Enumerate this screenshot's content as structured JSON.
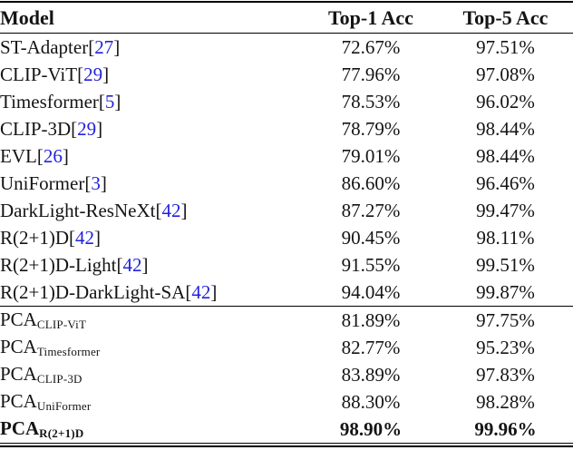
{
  "table": {
    "columns": [
      {
        "label": "Model"
      },
      {
        "label": "Top-1 Acc"
      },
      {
        "label": "Top-5 Acc"
      }
    ],
    "bracket_open": "[",
    "bracket_close": "]",
    "cite_color": "#2222dd",
    "rows": [
      {
        "name": "ST-Adapter",
        "cite": "27",
        "top1": "72.67%",
        "top5": "97.51%"
      },
      {
        "name": "CLIP-ViT",
        "cite": "29",
        "top1": "77.96%",
        "top5": "97.08%"
      },
      {
        "name": "Timesformer",
        "cite": "5",
        "top1": "78.53%",
        "top5": "96.02%"
      },
      {
        "name": "CLIP-3D",
        "cite": "29",
        "top1": "78.79%",
        "top5": "98.44%"
      },
      {
        "name": "EVL",
        "cite": "26",
        "top1": "79.01%",
        "top5": "98.44%"
      },
      {
        "name": "UniFormer",
        "cite": "3",
        "top1": "86.60%",
        "top5": "96.46%"
      },
      {
        "name": "DarkLight-ResNeXt",
        "cite": "42",
        "top1": "87.27%",
        "top5": "99.47%"
      },
      {
        "name": "R(2+1)D",
        "cite": "42",
        "top1": "90.45%",
        "top5": "98.11%"
      },
      {
        "name": "R(2+1)D-Light",
        "cite": "42",
        "top1": "91.55%",
        "top5": "99.51%"
      },
      {
        "name": "R(2+1)D-DarkLight-SA",
        "cite": "42",
        "top1": "94.04%",
        "top5": "99.87%"
      },
      {
        "name": "PCA",
        "sub": "CLIP-ViT",
        "top1": "81.89%",
        "top5": "97.75%"
      },
      {
        "name": "PCA",
        "sub": "Timesformer",
        "top1": "82.77%",
        "top5": "95.23%"
      },
      {
        "name": "PCA",
        "sub": "CLIP-3D",
        "top1": "83.89%",
        "top5": "97.83%"
      },
      {
        "name": "PCA",
        "sub": "UniFormer",
        "top1": "88.30%",
        "top5": "98.28%"
      },
      {
        "name": "PCA",
        "sub": "R(2+1)D",
        "top1": "98.90%",
        "top5": "99.96%",
        "bold": true
      }
    ]
  }
}
